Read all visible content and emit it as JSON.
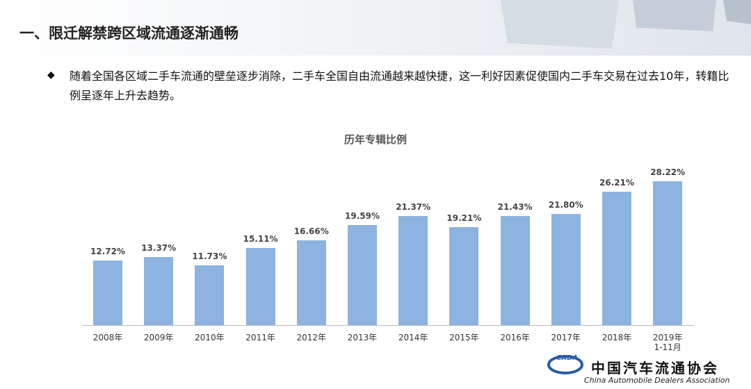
{
  "header": {
    "title": "一、限迁解禁跨区域流通逐渐通畅"
  },
  "bullet": {
    "text": "随着全国各区域二手车流通的壁垒逐步消除，二手车全国自由流通越来越快捷，这一利好因素促使国内二手车交易在过去10年，转籍比例呈逐年上升去趋势。"
  },
  "chart_data": {
    "type": "bar",
    "title": "历年专辑比例",
    "categories": [
      "2008年",
      "2009年",
      "2010年",
      "2011年",
      "2012年",
      "2013年",
      "2014年",
      "2015年",
      "2016年",
      "2017年",
      "2018年",
      "2019年\n1-11月"
    ],
    "values": [
      12.72,
      13.37,
      11.73,
      15.11,
      16.66,
      19.59,
      21.37,
      19.21,
      21.43,
      21.8,
      26.21,
      28.22
    ],
    "value_labels": [
      "12.72%",
      "13.37%",
      "11.73%",
      "15.11%",
      "16.66%",
      "19.59%",
      "21.37%",
      "19.21%",
      "21.43%",
      "21.80%",
      "26.21%",
      "28.22%"
    ],
    "color": "#8db3e0"
  },
  "logo": {
    "mark": "CADA",
    "name": "中国汽车流通协会",
    "english": "China Automobile Dealers Association"
  }
}
